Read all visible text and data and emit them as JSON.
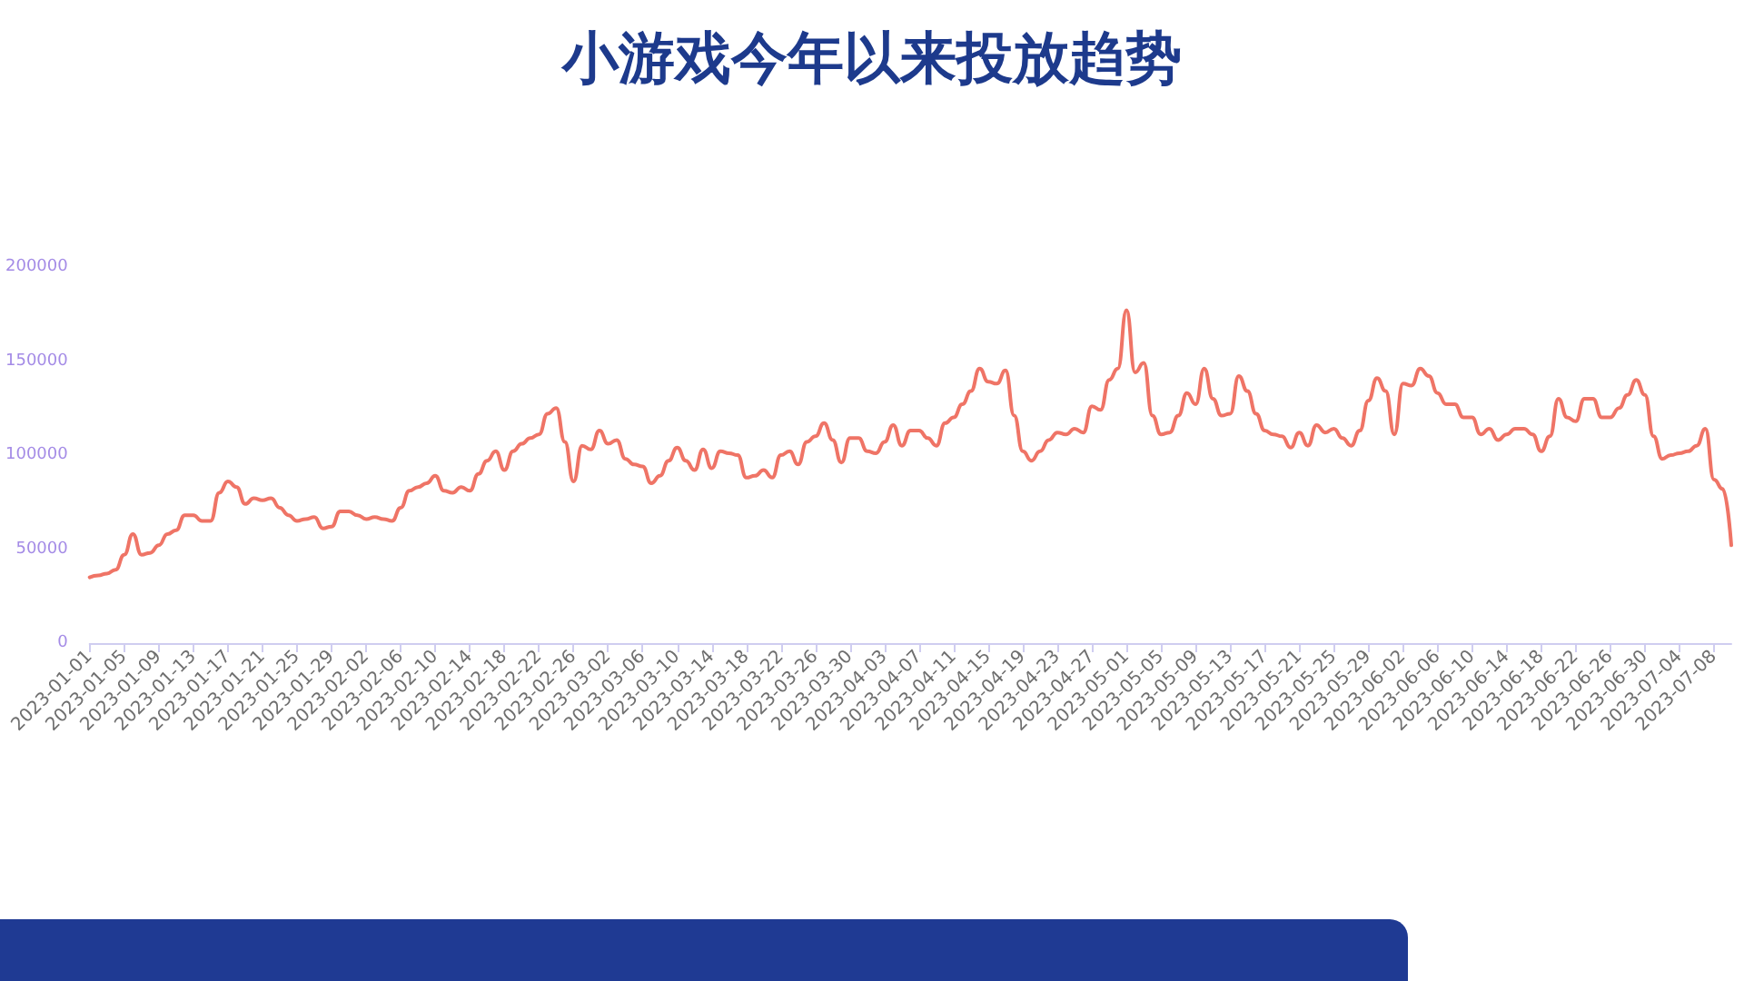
{
  "chart_data": {
    "type": "line",
    "title": "小游戏今年以来投放趋势",
    "categories": [
      "2023-01-01",
      null,
      null,
      null,
      "2023-01-05",
      null,
      null,
      null,
      "2023-01-09",
      null,
      null,
      null,
      "2023-01-13",
      null,
      null,
      null,
      "2023-01-17",
      null,
      null,
      null,
      "2023-01-21",
      null,
      null,
      null,
      "2023-01-25",
      null,
      null,
      null,
      "2023-01-29",
      null,
      null,
      null,
      "2023-02-02",
      null,
      null,
      null,
      "2023-02-06",
      null,
      null,
      null,
      "2023-02-10",
      null,
      null,
      null,
      "2023-02-14",
      null,
      null,
      null,
      "2023-02-18",
      null,
      null,
      null,
      "2023-02-22",
      null,
      null,
      null,
      "2023-02-26",
      null,
      null,
      null,
      "2023-03-02",
      null,
      null,
      null,
      "2023-03-06",
      null,
      null,
      null,
      "2023-03-10",
      null,
      null,
      null,
      "2023-03-14",
      null,
      null,
      null,
      "2023-03-18",
      null,
      null,
      null,
      "2023-03-22",
      null,
      null,
      null,
      "2023-03-26",
      null,
      null,
      null,
      "2023-03-30",
      null,
      null,
      null,
      "2023-04-03",
      null,
      null,
      null,
      "2023-04-07",
      null,
      null,
      null,
      "2023-04-11",
      null,
      null,
      null,
      "2023-04-15",
      null,
      null,
      null,
      "2023-04-19",
      null,
      null,
      null,
      "2023-04-23",
      null,
      null,
      null,
      "2023-04-27",
      null,
      null,
      null,
      "2023-05-01",
      null,
      null,
      null,
      "2023-05-05",
      null,
      null,
      null,
      "2023-05-09",
      null,
      null,
      null,
      "2023-05-13",
      null,
      null,
      null,
      "2023-05-17",
      null,
      null,
      null,
      "2023-05-21",
      null,
      null,
      null,
      "2023-05-25",
      null,
      null,
      null,
      "2023-05-29",
      null,
      null,
      null,
      "2023-06-02",
      null,
      null,
      null,
      "2023-06-06",
      null,
      null,
      null,
      "2023-06-10",
      null,
      null,
      null,
      "2023-06-14",
      null,
      null,
      null,
      "2023-06-18",
      null,
      null,
      null,
      "2023-06-22",
      null,
      null,
      null,
      "2023-06-26",
      null,
      null,
      null,
      "2023-06-30",
      null,
      null,
      null,
      "2023-07-04",
      null,
      null,
      null,
      "2023-07-08",
      null,
      null
    ],
    "values": [
      35000,
      36000,
      37000,
      39000,
      47000,
      58000,
      47000,
      48000,
      52000,
      58000,
      60000,
      68000,
      68000,
      65000,
      65000,
      80000,
      86000,
      83000,
      74000,
      77000,
      76000,
      77000,
      72000,
      68000,
      65000,
      66000,
      67000,
      61000,
      62000,
      70000,
      70000,
      68000,
      66000,
      67000,
      66000,
      65000,
      72000,
      81000,
      83000,
      85000,
      89000,
      81000,
      80000,
      83000,
      81000,
      90000,
      97000,
      102000,
      92000,
      102000,
      106000,
      109000,
      111000,
      122000,
      125000,
      107000,
      86000,
      105000,
      103000,
      113000,
      106000,
      108000,
      98000,
      95000,
      94000,
      85000,
      89000,
      97000,
      104000,
      97000,
      92000,
      103000,
      93000,
      102000,
      101000,
      100000,
      88000,
      89000,
      92000,
      88000,
      100000,
      102000,
      95000,
      107000,
      110000,
      117000,
      108000,
      96000,
      109000,
      109000,
      102000,
      101000,
      107000,
      116000,
      105000,
      113000,
      113000,
      109000,
      105000,
      117000,
      120000,
      127000,
      134000,
      146000,
      139000,
      138000,
      145000,
      121000,
      102000,
      97000,
      102000,
      108000,
      112000,
      111000,
      114000,
      112000,
      126000,
      124000,
      140000,
      146000,
      177000,
      144000,
      149000,
      121000,
      111000,
      112000,
      121000,
      133000,
      127000,
      146000,
      130000,
      121000,
      122000,
      142000,
      134000,
      122000,
      113000,
      111000,
      110000,
      104000,
      112000,
      105000,
      116000,
      112000,
      114000,
      109000,
      105000,
      113000,
      129000,
      141000,
      134000,
      111000,
      138000,
      137000,
      146000,
      142000,
      133000,
      127000,
      127000,
      120000,
      120000,
      111000,
      114000,
      108000,
      111000,
      114000,
      114000,
      111000,
      102000,
      110000,
      130000,
      120000,
      118000,
      130000,
      130000,
      120000,
      120000,
      125000,
      132000,
      140000,
      132000,
      110000,
      98000,
      100000,
      101000,
      102000,
      105000,
      114000,
      87000,
      82000,
      52000
    ],
    "color": "#ef7466",
    "ylim": [
      0,
      200000
    ],
    "yticks": [
      0,
      50000,
      100000,
      150000,
      200000
    ],
    "grid": false,
    "marker": "none",
    "line_style": "solid"
  }
}
